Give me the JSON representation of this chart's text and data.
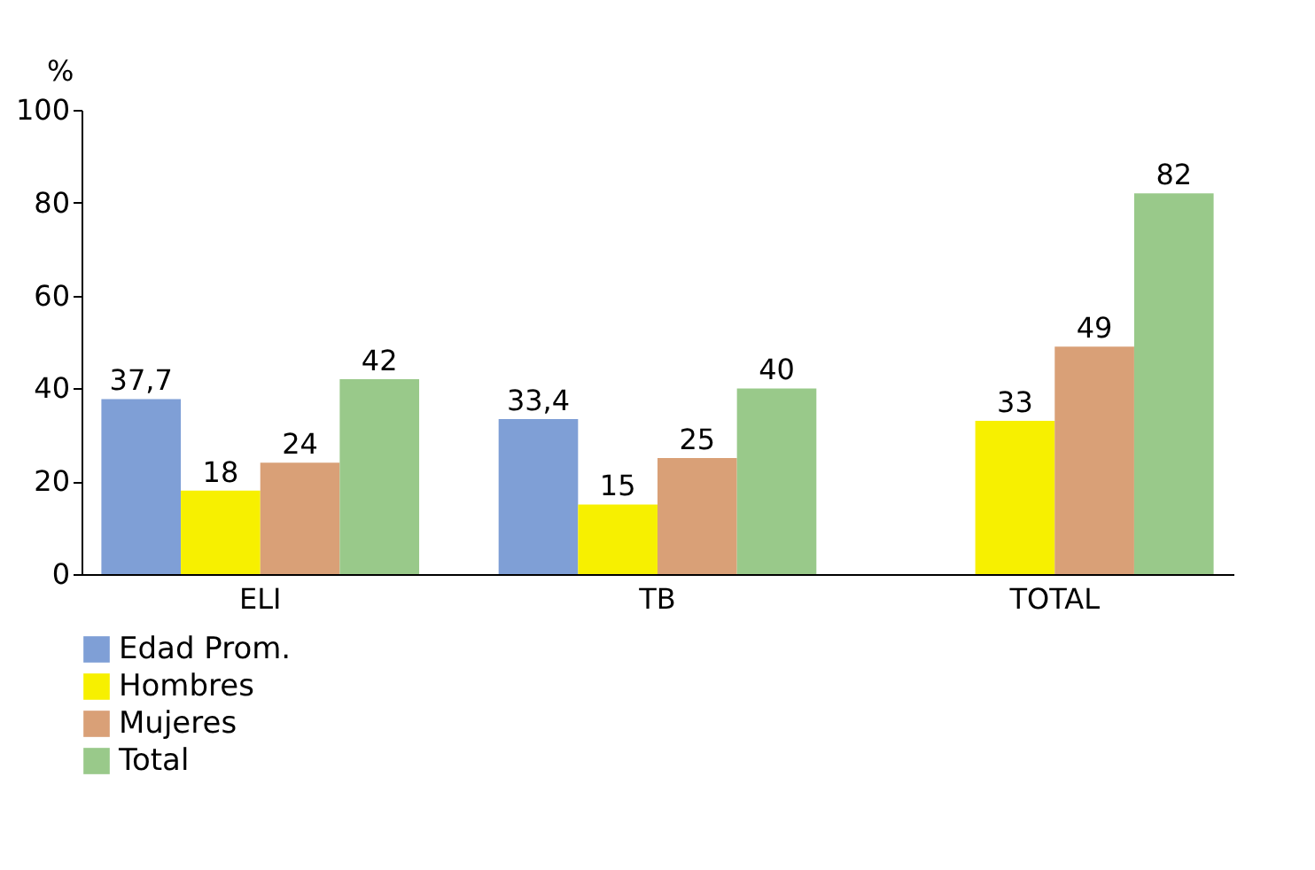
{
  "chart_data": {
    "type": "bar",
    "ylabel": "%",
    "categories": [
      "ELI",
      "TB",
      "TOTAL"
    ],
    "series": [
      {
        "name": "Edad Prom.",
        "color": "#7f9fd6",
        "values": [
          37.7,
          33.4,
          null
        ],
        "value_labels": [
          "37,7",
          "33,4",
          null
        ]
      },
      {
        "name": "Hombres",
        "color": "#f7f000",
        "values": [
          18,
          15,
          33
        ],
        "value_labels": [
          "18",
          "15",
          "33"
        ]
      },
      {
        "name": "Mujeres",
        "color": "#d9a077",
        "values": [
          24,
          25,
          49
        ],
        "value_labels": [
          "24",
          "25",
          "49"
        ]
      },
      {
        "name": "Total",
        "color": "#99c98a",
        "values": [
          42,
          40,
          82
        ],
        "value_labels": [
          "42",
          "40",
          "82"
        ]
      }
    ],
    "ylim": [
      0,
      100
    ],
    "yticks": [
      0,
      20,
      40,
      60,
      80,
      100
    ],
    "legend": "bottom left"
  }
}
